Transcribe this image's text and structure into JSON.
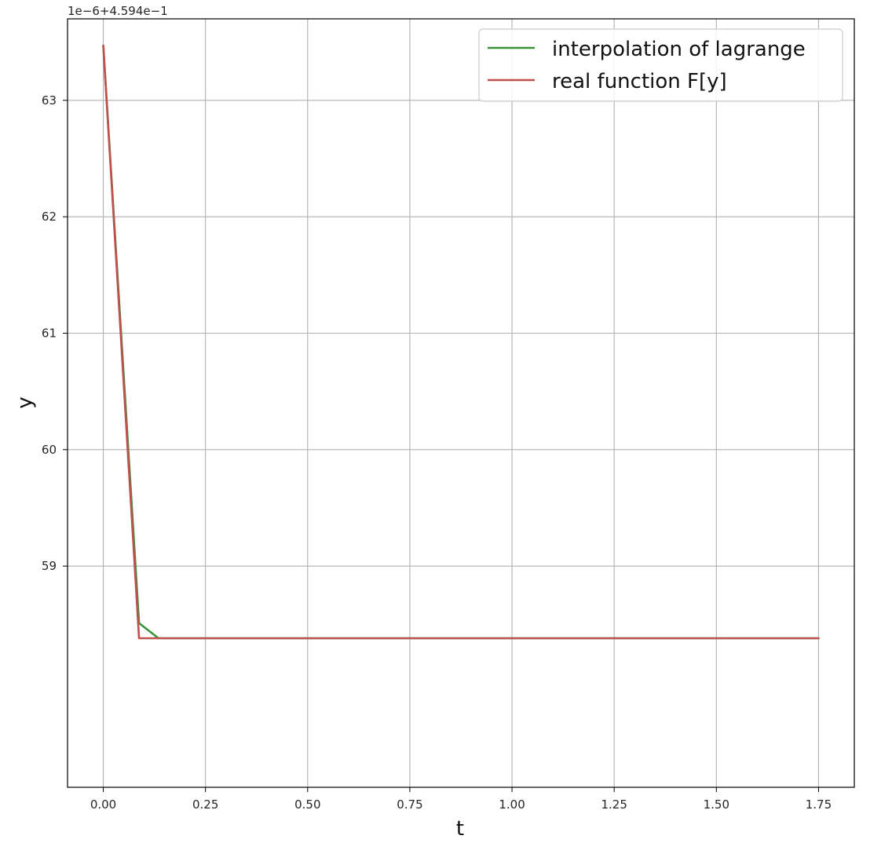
{
  "chart_data": {
    "type": "line",
    "title": "",
    "xlabel": "t",
    "ylabel": "y",
    "offset_text": "1e−6+4.594e−1",
    "xlim": [
      -0.0875,
      1.8375
    ],
    "ylim": [
      57.1,
      63.7
    ],
    "x_ticks": [
      0.0,
      0.25,
      0.5,
      0.75,
      1.0,
      1.25,
      1.5,
      1.75
    ],
    "x_tick_labels": [
      "0.00",
      "0.25",
      "0.50",
      "0.75",
      "1.00",
      "1.25",
      "1.50",
      "1.75"
    ],
    "y_ticks": [
      59,
      60,
      61,
      62,
      63
    ],
    "y_tick_labels": [
      "59",
      "60",
      "61",
      "62",
      "63"
    ],
    "grid": true,
    "legend_placement": "upper right",
    "series": [
      {
        "name": "interpolation of lagrange",
        "color": "#3a923a",
        "x": [
          0.0,
          0.0875,
          0.135,
          1.75
        ],
        "y": [
          63.47,
          58.51,
          58.38,
          58.38
        ]
      },
      {
        "name": "real function F[y]",
        "color": "#c0504d",
        "x": [
          0.0,
          0.0875,
          1.75
        ],
        "y": [
          63.47,
          58.38,
          58.38
        ]
      }
    ]
  }
}
